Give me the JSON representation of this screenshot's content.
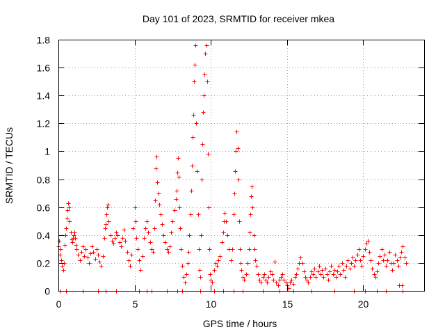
{
  "chart_data": {
    "type": "scatter",
    "title": "Day 101 of 2023, SRMTID for receiver mkea",
    "xlabel": "GPS time / hours",
    "ylabel": "SRMTID / TECUs",
    "xlim": [
      0,
      24
    ],
    "ylim": [
      0,
      1.8
    ],
    "x_ticks": [
      0,
      5,
      10,
      15,
      20
    ],
    "x_tick_labels": [
      "0",
      "5",
      "10",
      "15",
      "20"
    ],
    "y_ticks": [
      0,
      0.2,
      0.4,
      0.6,
      0.8,
      1,
      1.2,
      1.4,
      1.6,
      1.8
    ],
    "y_tick_labels": [
      "0",
      "0.2",
      "0.4",
      "0.6",
      "0.8",
      "1",
      "1.2",
      "1.4",
      "1.6",
      "1.8"
    ],
    "grid": true,
    "marker": "+",
    "color": "#ff0000",
    "series": [
      {
        "name": "SRMTID",
        "points": [
          [
            0.0,
            0.32
          ],
          [
            0.05,
            0.36
          ],
          [
            0.1,
            0.26
          ],
          [
            0.15,
            0.3
          ],
          [
            0.2,
            0.22
          ],
          [
            0.25,
            0.18
          ],
          [
            0.3,
            0.15
          ],
          [
            0.35,
            0.2
          ],
          [
            0.4,
            0.33
          ],
          [
            0.45,
            0.4
          ],
          [
            0.5,
            0.45
          ],
          [
            0.55,
            0.52
          ],
          [
            0.6,
            0.58
          ],
          [
            0.65,
            0.63
          ],
          [
            0.7,
            0.6
          ],
          [
            0.75,
            0.5
          ],
          [
            0.8,
            0.42
          ],
          [
            0.85,
            0.37
          ],
          [
            0.9,
            0.35
          ],
          [
            0.95,
            0.38
          ],
          [
            1.0,
            0.4
          ],
          [
            1.05,
            0.42
          ],
          [
            1.1,
            0.38
          ],
          [
            1.15,
            0.33
          ],
          [
            1.2,
            0.3
          ],
          [
            1.3,
            0.26
          ],
          [
            1.4,
            0.22
          ],
          [
            1.5,
            0.28
          ],
          [
            1.6,
            0.32
          ],
          [
            1.7,
            0.25
          ],
          [
            1.8,
            0.3
          ],
          [
            1.9,
            0.24
          ],
          [
            2.0,
            0.2
          ],
          [
            2.1,
            0.27
          ],
          [
            2.2,
            0.32
          ],
          [
            2.3,
            0.28
          ],
          [
            2.4,
            0.23
          ],
          [
            2.5,
            0.3
          ],
          [
            2.6,
            0.26
          ],
          [
            2.7,
            0.21
          ],
          [
            2.8,
            0.18
          ],
          [
            2.9,
            0.25
          ],
          [
            3.0,
            0.38
          ],
          [
            3.05,
            0.45
          ],
          [
            3.1,
            0.48
          ],
          [
            3.15,
            0.55
          ],
          [
            3.2,
            0.6
          ],
          [
            3.25,
            0.62
          ],
          [
            3.3,
            0.5
          ],
          [
            3.4,
            0.4
          ],
          [
            3.5,
            0.36
          ],
          [
            3.6,
            0.34
          ],
          [
            3.7,
            0.38
          ],
          [
            3.8,
            0.42
          ],
          [
            3.9,
            0.4
          ],
          [
            4.0,
            0.35
          ],
          [
            4.1,
            0.32
          ],
          [
            4.2,
            0.38
          ],
          [
            4.3,
            0.44
          ],
          [
            4.4,
            0.36
          ],
          [
            4.5,
            0.28
          ],
          [
            4.6,
            0.22
          ],
          [
            4.7,
            0.18
          ],
          [
            4.8,
            0.26
          ],
          [
            4.9,
            0.45
          ],
          [
            5.0,
            0.6
          ],
          [
            5.05,
            0.5
          ],
          [
            5.1,
            0.38
          ],
          [
            5.2,
            0.3
          ],
          [
            5.3,
            0.22
          ],
          [
            5.4,
            0.15
          ],
          [
            5.5,
            0.25
          ],
          [
            5.6,
            0.38
          ],
          [
            5.7,
            0.45
          ],
          [
            5.8,
            0.5
          ],
          [
            5.9,
            0.42
          ],
          [
            6.0,
            0.35
          ],
          [
            6.1,
            0.3
          ],
          [
            6.2,
            0.28
          ],
          [
            6.3,
            0.45
          ],
          [
            6.35,
            0.65
          ],
          [
            6.4,
            0.88
          ],
          [
            6.45,
            0.96
          ],
          [
            6.5,
            0.78
          ],
          [
            6.55,
            0.7
          ],
          [
            6.6,
            0.62
          ],
          [
            6.7,
            0.55
          ],
          [
            6.8,
            0.48
          ],
          [
            6.9,
            0.4
          ],
          [
            7.0,
            0.35
          ],
          [
            7.1,
            0.3
          ],
          [
            7.2,
            0.28
          ],
          [
            7.3,
            0.32
          ],
          [
            7.4,
            0.42
          ],
          [
            7.5,
            0.5
          ],
          [
            7.6,
            0.58
          ],
          [
            7.7,
            0.66
          ],
          [
            7.75,
            0.72
          ],
          [
            7.8,
            0.85
          ],
          [
            7.85,
            0.95
          ],
          [
            7.9,
            0.82
          ],
          [
            7.95,
            0.6
          ],
          [
            8.0,
            0.45
          ],
          [
            8.05,
            0.3
          ],
          [
            8.1,
            0.18
          ],
          [
            8.2,
            0.1
          ],
          [
            8.3,
            0.06
          ],
          [
            8.4,
            0.12
          ],
          [
            8.5,
            0.2
          ],
          [
            8.55,
            0.28
          ],
          [
            8.6,
            0.4
          ],
          [
            8.65,
            0.55
          ],
          [
            8.7,
            0.72
          ],
          [
            8.75,
            0.9
          ],
          [
            8.8,
            1.1
          ],
          [
            8.85,
            1.26
          ],
          [
            8.9,
            1.5
          ],
          [
            8.95,
            1.62
          ],
          [
            9.0,
            1.76
          ],
          [
            9.05,
            1.2
          ],
          [
            9.1,
            0.86
          ],
          [
            9.15,
            0.55
          ],
          [
            9.2,
            0.3
          ],
          [
            9.25,
            0.15
          ],
          [
            9.3,
            0.1
          ],
          [
            9.35,
            0.4
          ],
          [
            9.4,
            0.8
          ],
          [
            9.45,
            1.05
          ],
          [
            9.5,
            1.28
          ],
          [
            9.55,
            1.4
          ],
          [
            9.6,
            1.55
          ],
          [
            9.65,
            1.7
          ],
          [
            9.7,
            1.76
          ],
          [
            9.75,
            1.5
          ],
          [
            9.8,
            0.98
          ],
          [
            9.85,
            0.6
          ],
          [
            9.9,
            0.3
          ],
          [
            9.95,
            0.12
          ],
          [
            10.0,
            0.08
          ],
          [
            10.1,
            0.06
          ],
          [
            10.2,
            0.15
          ],
          [
            10.3,
            0.2
          ],
          [
            10.4,
            0.18
          ],
          [
            10.5,
            0.22
          ],
          [
            10.6,
            0.25
          ],
          [
            10.7,
            0.35
          ],
          [
            10.8,
            0.42
          ],
          [
            10.85,
            0.5
          ],
          [
            10.9,
            0.56
          ],
          [
            11.0,
            0.5
          ],
          [
            11.1,
            0.4
          ],
          [
            11.2,
            0.3
          ],
          [
            11.3,
            0.22
          ],
          [
            11.4,
            0.3
          ],
          [
            11.5,
            0.55
          ],
          [
            11.55,
            0.7
          ],
          [
            11.6,
            0.86
          ],
          [
            11.65,
            1.0
          ],
          [
            11.7,
            1.14
          ],
          [
            11.75,
            1.02
          ],
          [
            11.8,
            0.8
          ],
          [
            11.85,
            0.5
          ],
          [
            11.9,
            0.3
          ],
          [
            11.95,
            0.2
          ],
          [
            12.0,
            0.15
          ],
          [
            12.1,
            0.1
          ],
          [
            12.2,
            0.08
          ],
          [
            12.3,
            0.12
          ],
          [
            12.4,
            0.2
          ],
          [
            12.5,
            0.3
          ],
          [
            12.55,
            0.42
          ],
          [
            12.6,
            0.55
          ],
          [
            12.65,
            0.68
          ],
          [
            12.7,
            0.75
          ],
          [
            12.75,
            0.6
          ],
          [
            12.8,
            0.4
          ],
          [
            12.85,
            0.3
          ],
          [
            12.9,
            0.22
          ],
          [
            13.0,
            0.18
          ],
          [
            13.1,
            0.12
          ],
          [
            13.2,
            0.08
          ],
          [
            13.3,
            0.06
          ],
          [
            13.4,
            0.1
          ],
          [
            13.5,
            0.12
          ],
          [
            13.6,
            0.08
          ],
          [
            13.7,
            0.06
          ],
          [
            13.8,
            0.1
          ],
          [
            13.9,
            0.14
          ],
          [
            14.0,
            0.12
          ],
          [
            14.1,
            0.08
          ],
          [
            14.2,
            0.21
          ],
          [
            14.3,
            0.06
          ],
          [
            14.4,
            0.04
          ],
          [
            14.5,
            0.08
          ],
          [
            14.6,
            0.1
          ],
          [
            14.7,
            0.12
          ],
          [
            14.8,
            0.08
          ],
          [
            14.9,
            0.06
          ],
          [
            15.0,
            0.04
          ],
          [
            15.1,
            0.02
          ],
          [
            15.2,
            0.06
          ],
          [
            15.3,
            0.08
          ],
          [
            15.4,
            0.05
          ],
          [
            15.5,
            0.1
          ],
          [
            15.6,
            0.12
          ],
          [
            15.7,
            0.16
          ],
          [
            15.8,
            0.2
          ],
          [
            15.9,
            0.24
          ],
          [
            16.0,
            0.2
          ],
          [
            16.1,
            0.14
          ],
          [
            16.2,
            0.1
          ],
          [
            16.3,
            0.08
          ],
          [
            16.4,
            0.06
          ],
          [
            16.5,
            0.1
          ],
          [
            16.6,
            0.14
          ],
          [
            16.7,
            0.12
          ],
          [
            16.8,
            0.16
          ],
          [
            16.9,
            0.1
          ],
          [
            17.0,
            0.14
          ],
          [
            17.1,
            0.18
          ],
          [
            17.2,
            0.12
          ],
          [
            17.3,
            0.15
          ],
          [
            17.4,
            0.1
          ],
          [
            17.5,
            0.16
          ],
          [
            17.6,
            0.12
          ],
          [
            17.7,
            0.08
          ],
          [
            17.8,
            0.14
          ],
          [
            17.9,
            0.18
          ],
          [
            18.0,
            0.12
          ],
          [
            18.1,
            0.15
          ],
          [
            18.2,
            0.1
          ],
          [
            18.3,
            0.14
          ],
          [
            18.4,
            0.18
          ],
          [
            18.5,
            0.12
          ],
          [
            18.6,
            0.2
          ],
          [
            18.7,
            0.15
          ],
          [
            18.8,
            0.1
          ],
          [
            18.9,
            0.18
          ],
          [
            19.0,
            0.22
          ],
          [
            19.1,
            0.16
          ],
          [
            19.2,
            0.2
          ],
          [
            19.3,
            0.24
          ],
          [
            19.4,
            0.18
          ],
          [
            19.5,
            0.22
          ],
          [
            19.6,
            0.26
          ],
          [
            19.7,
            0.3
          ],
          [
            19.8,
            0.22
          ],
          [
            19.9,
            0.18
          ],
          [
            20.0,
            0.25
          ],
          [
            20.1,
            0.3
          ],
          [
            20.2,
            0.34
          ],
          [
            20.3,
            0.36
          ],
          [
            20.4,
            0.28
          ],
          [
            20.5,
            0.22
          ],
          [
            20.6,
            0.16
          ],
          [
            20.7,
            0.12
          ],
          [
            20.8,
            0.1
          ],
          [
            20.9,
            0.14
          ],
          [
            21.0,
            0.2
          ],
          [
            21.1,
            0.25
          ],
          [
            21.2,
            0.3
          ],
          [
            21.3,
            0.22
          ],
          [
            21.4,
            0.26
          ],
          [
            21.5,
            0.18
          ],
          [
            21.6,
            0.22
          ],
          [
            21.7,
            0.28
          ],
          [
            21.8,
            0.2
          ],
          [
            21.9,
            0.15
          ],
          [
            22.0,
            0.2
          ],
          [
            22.1,
            0.26
          ],
          [
            22.2,
            0.22
          ],
          [
            22.3,
            0.18
          ],
          [
            22.35,
            0.04
          ],
          [
            22.4,
            0.24
          ],
          [
            22.5,
            0.28
          ],
          [
            22.55,
            0.04
          ],
          [
            22.6,
            0.32
          ],
          [
            22.7,
            0.24
          ],
          [
            22.8,
            0.2
          ]
        ]
      }
    ],
    "baseline_markers_x": [
      0.1,
      0.5,
      1.6,
      2.6,
      3.1,
      3.8,
      5.3,
      5.8,
      6.1,
      7.1,
      7.8,
      8.1,
      9.3,
      10.2,
      10.8,
      11.5,
      12.1,
      13.4,
      14.5,
      15.4,
      16.6,
      18.1,
      19.4,
      20.1,
      20.9,
      21.5,
      22.6
    ]
  }
}
